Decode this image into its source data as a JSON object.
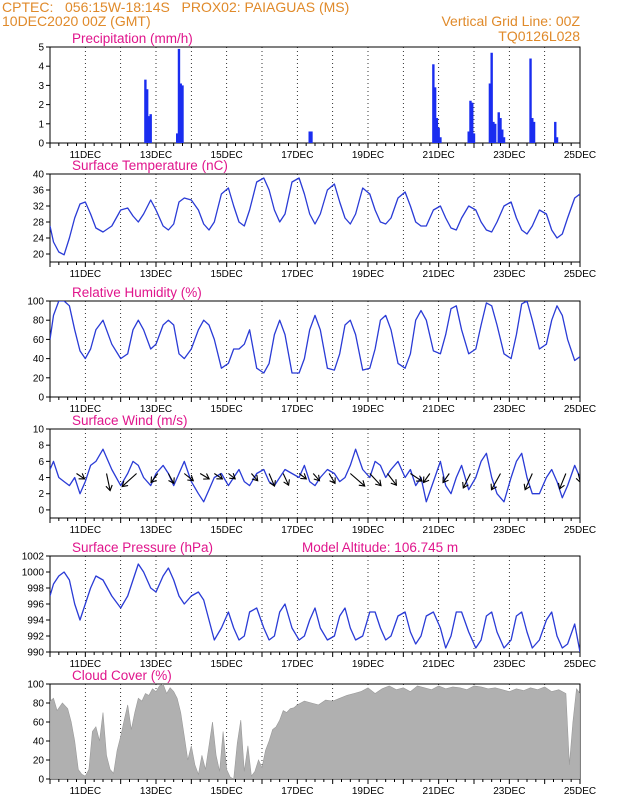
{
  "header": {
    "line1_left": "CPTEC:   056:15W-18:14S   PROX02: PAIAGUAS (MS)",
    "line2_left": "10DEC2020 00Z (GMT)",
    "line2_right": "Vertical Grid Line: 00Z",
    "line3_right": "TQ0126L028"
  },
  "colors": {
    "header": "#e08a2a",
    "title": "#e0158c",
    "line": "#2a3bd6",
    "bar": "#1a2df0",
    "cloud": "#b0b0b0",
    "arrow": "#000000"
  },
  "chart_data": [
    {
      "type": "bar",
      "title": "Precipitation (mm/h)",
      "ylim": [
        0,
        5
      ],
      "yticks": [
        0,
        1,
        2,
        3,
        4,
        5
      ],
      "xticks": [
        "11DEC",
        "13DEC",
        "15DEC",
        "17DEC",
        "19DEC",
        "21DEC",
        "23DEC",
        "25DEC"
      ],
      "xlim": [
        0,
        15
      ],
      "x": [
        2.7,
        2.75,
        2.8,
        2.85,
        3.6,
        3.65,
        3.7,
        3.75,
        7.35,
        7.4,
        10.85,
        10.9,
        10.95,
        11.0,
        11.05,
        11.85,
        11.9,
        11.95,
        12.0,
        12.45,
        12.5,
        12.55,
        12.6,
        12.7,
        12.75,
        12.8,
        12.85,
        13.6,
        13.65,
        13.7,
        14.3,
        14.35
      ],
      "values": [
        3.3,
        2.8,
        1.4,
        1.5,
        0.5,
        4.9,
        3.1,
        3.0,
        0.6,
        0.6,
        4.1,
        2.9,
        1.3,
        0.8,
        0.3,
        0.6,
        2.2,
        2.1,
        0.5,
        3.1,
        4.7,
        1.1,
        1.0,
        1.6,
        1.3,
        0.7,
        0.3,
        4.4,
        1.3,
        1.1,
        1.1,
        0.3
      ]
    },
    {
      "type": "line",
      "title": "Surface Temperature (nC)",
      "ylim": [
        18,
        40
      ],
      "yticks": [
        20,
        24,
        28,
        32,
        36,
        40
      ],
      "xticks": [
        "11DEC",
        "13DEC",
        "15DEC",
        "17DEC",
        "19DEC",
        "21DEC",
        "23DEC",
        "25DEC"
      ],
      "xlim": [
        0,
        15
      ],
      "x": [
        0,
        0.1,
        0.25,
        0.4,
        0.55,
        0.7,
        0.85,
        1.0,
        1.15,
        1.3,
        1.5,
        1.75,
        2.0,
        2.2,
        2.35,
        2.5,
        2.65,
        2.85,
        3.0,
        3.2,
        3.35,
        3.5,
        3.65,
        3.8,
        4.0,
        4.2,
        4.35,
        4.5,
        4.65,
        4.85,
        5.05,
        5.2,
        5.35,
        5.5,
        5.65,
        5.85,
        6.05,
        6.2,
        6.35,
        6.5,
        6.65,
        6.85,
        7.05,
        7.2,
        7.35,
        7.5,
        7.65,
        7.85,
        8.05,
        8.2,
        8.35,
        8.5,
        8.65,
        8.85,
        9.05,
        9.2,
        9.35,
        9.5,
        9.65,
        9.85,
        10.05,
        10.2,
        10.35,
        10.5,
        10.65,
        10.85,
        11.05,
        11.2,
        11.35,
        11.5,
        11.65,
        11.85,
        12.05,
        12.2,
        12.35,
        12.5,
        12.65,
        12.85,
        13.05,
        13.2,
        13.35,
        13.5,
        13.65,
        13.85,
        14.05,
        14.2,
        14.35,
        14.5,
        14.65,
        14.85,
        15.0
      ],
      "values": [
        27,
        23,
        20.5,
        19.8,
        24,
        29,
        32.5,
        33,
        30,
        26.5,
        25.5,
        27,
        31,
        31.5,
        29.5,
        28,
        30,
        33.5,
        31,
        27,
        26,
        27.5,
        33,
        34,
        33.5,
        31,
        27.5,
        26,
        28,
        35,
        36.5,
        32,
        28,
        27,
        31,
        38,
        39,
        36,
        31,
        28,
        30,
        38,
        39,
        35,
        30,
        27.5,
        30,
        36,
        37.5,
        33,
        29,
        27.5,
        30,
        36.5,
        35,
        31,
        28,
        27.5,
        29,
        34,
        35.5,
        32,
        28,
        27,
        27,
        31,
        32,
        29,
        26.5,
        26,
        29,
        32,
        31,
        28,
        26,
        25.5,
        28,
        32,
        33,
        29,
        26,
        25,
        27,
        31,
        30,
        26,
        24,
        25,
        29,
        34,
        35
      ]
    },
    {
      "type": "line",
      "title": "Relative Humidity (%)",
      "ylim": [
        0,
        100
      ],
      "yticks": [
        0,
        20,
        40,
        60,
        80,
        100
      ],
      "xticks": [
        "11DEC",
        "13DEC",
        "15DEC",
        "17DEC",
        "19DEC",
        "21DEC",
        "23DEC",
        "25DEC"
      ],
      "xlim": [
        0,
        15
      ],
      "x": [
        0,
        0.1,
        0.25,
        0.4,
        0.55,
        0.7,
        0.85,
        1.0,
        1.15,
        1.3,
        1.5,
        1.75,
        2.0,
        2.2,
        2.35,
        2.5,
        2.65,
        2.85,
        3.0,
        3.2,
        3.35,
        3.5,
        3.65,
        3.8,
        4.0,
        4.2,
        4.35,
        4.5,
        4.65,
        4.85,
        5.05,
        5.2,
        5.35,
        5.5,
        5.65,
        5.85,
        6.05,
        6.2,
        6.35,
        6.5,
        6.65,
        6.85,
        7.05,
        7.2,
        7.35,
        7.5,
        7.65,
        7.85,
        8.05,
        8.2,
        8.35,
        8.5,
        8.65,
        8.85,
        9.05,
        9.2,
        9.35,
        9.5,
        9.65,
        9.85,
        10.05,
        10.2,
        10.35,
        10.5,
        10.65,
        10.85,
        11.05,
        11.2,
        11.35,
        11.5,
        11.65,
        11.85,
        12.05,
        12.2,
        12.35,
        12.5,
        12.65,
        12.85,
        13.05,
        13.2,
        13.35,
        13.5,
        13.65,
        13.85,
        14.05,
        14.2,
        14.35,
        14.5,
        14.65,
        14.85,
        15.0
      ],
      "values": [
        60,
        85,
        100,
        100,
        95,
        70,
        48,
        40,
        50,
        70,
        80,
        55,
        40,
        45,
        70,
        80,
        70,
        50,
        55,
        75,
        80,
        75,
        45,
        40,
        50,
        70,
        80,
        75,
        60,
        30,
        35,
        50,
        50,
        55,
        70,
        30,
        25,
        35,
        65,
        80,
        65,
        25,
        25,
        40,
        70,
        85,
        70,
        30,
        28,
        45,
        75,
        80,
        65,
        28,
        30,
        50,
        80,
        85,
        70,
        35,
        30,
        45,
        80,
        90,
        80,
        48,
        45,
        65,
        92,
        95,
        70,
        45,
        50,
        75,
        98,
        95,
        75,
        45,
        40,
        65,
        97,
        100,
        80,
        50,
        55,
        80,
        95,
        85,
        60,
        38,
        42
      ]
    },
    {
      "type": "line",
      "title": "Surface Wind (m/s)",
      "ylim": [
        -1,
        10
      ],
      "yticks": [
        0,
        2,
        4,
        6,
        8,
        10
      ],
      "xticks": [
        "11DEC",
        "13DEC",
        "15DEC",
        "17DEC",
        "19DEC",
        "21DEC",
        "23DEC",
        "25DEC"
      ],
      "xlim": [
        0,
        15
      ],
      "x": [
        0,
        0.1,
        0.25,
        0.4,
        0.55,
        0.7,
        0.85,
        1.0,
        1.15,
        1.3,
        1.5,
        1.75,
        2.0,
        2.2,
        2.35,
        2.5,
        2.65,
        2.85,
        3.0,
        3.2,
        3.35,
        3.5,
        3.65,
        3.8,
        4.0,
        4.2,
        4.35,
        4.5,
        4.65,
        4.85,
        5.05,
        5.2,
        5.35,
        5.5,
        5.65,
        5.85,
        6.05,
        6.2,
        6.35,
        6.5,
        6.65,
        6.85,
        7.05,
        7.2,
        7.35,
        7.5,
        7.65,
        7.85,
        8.05,
        8.2,
        8.35,
        8.5,
        8.65,
        8.85,
        9.05,
        9.2,
        9.35,
        9.5,
        9.65,
        9.85,
        10.05,
        10.2,
        10.35,
        10.5,
        10.65,
        10.85,
        11.05,
        11.2,
        11.35,
        11.5,
        11.65,
        11.85,
        12.05,
        12.2,
        12.35,
        12.5,
        12.65,
        12.85,
        13.05,
        13.2,
        13.35,
        13.5,
        13.65,
        13.85,
        14.05,
        14.2,
        14.35,
        14.5,
        14.65,
        14.85,
        15.0
      ],
      "values": [
        5,
        6,
        4,
        3.5,
        3,
        4,
        2,
        3.5,
        5.5,
        6,
        7.5,
        5,
        3,
        4.5,
        6,
        5.5,
        4,
        3,
        4.5,
        5.5,
        4.5,
        3,
        4.5,
        6,
        3.5,
        2,
        1,
        2.5,
        4,
        4.5,
        3,
        4,
        5,
        3.5,
        3,
        4.5,
        5,
        3.5,
        3,
        4,
        5,
        4.5,
        4,
        5.5,
        3.5,
        3,
        4,
        5,
        4.5,
        3.5,
        4,
        5.5,
        7.5,
        5,
        4,
        6,
        5.5,
        4,
        5,
        6,
        4,
        5,
        3,
        4,
        1,
        3.5,
        6,
        3,
        2,
        4,
        5.5,
        2.5,
        4,
        6,
        7,
        4,
        2,
        1,
        4,
        6,
        7,
        4,
        2,
        2,
        4,
        5,
        3.5,
        1.5,
        3,
        5.5,
        4
      ],
      "vectors": {
        "x": [
          0.75,
          1.6,
          2.45,
          3.05,
          3.35,
          3.8,
          4.25,
          4.65,
          5.05,
          5.7,
          6.2,
          6.6,
          7.05,
          7.45,
          7.9,
          8.5,
          9.05,
          9.55,
          10.2,
          10.75,
          11.3,
          11.9,
          12.75,
          13.65,
          14.6,
          14.95
        ],
        "u": [
          1.8,
          0.8,
          -3.2,
          -1.5,
          1.2,
          2,
          2,
          1.8,
          1.5,
          1.4,
          1.2,
          1.2,
          1.6,
          1.4,
          1.3,
          3.2,
          2.5,
          2,
          2.6,
          -1.4,
          -1.4,
          -1.6,
          -2,
          -1.6,
          -1.4,
          0.5
        ],
        "v": [
          -1.2,
          -3.8,
          -2.9,
          -2,
          -2.2,
          -1.6,
          -1.2,
          -1.2,
          -1.2,
          -1.6,
          -2.8,
          -2.6,
          -1.2,
          -1.6,
          -2.2,
          -2.8,
          -2.7,
          -2.6,
          -1.7,
          -2,
          -2,
          -3.2,
          -3.6,
          -3.6,
          -3.4,
          -2
        ]
      }
    },
    {
      "type": "line",
      "title": "Surface Pressure (hPa)",
      "annotation": "Model Altitude: 106.745  m",
      "ylim": [
        990,
        1002
      ],
      "yticks": [
        990,
        992,
        994,
        996,
        998,
        1000,
        1002
      ],
      "xticks": [
        "11DEC",
        "13DEC",
        "15DEC",
        "17DEC",
        "19DEC",
        "21DEC",
        "23DEC",
        "25DEC"
      ],
      "xlim": [
        0,
        15
      ],
      "x": [
        0,
        0.1,
        0.25,
        0.4,
        0.55,
        0.7,
        0.85,
        1.0,
        1.15,
        1.3,
        1.5,
        1.75,
        2.0,
        2.2,
        2.35,
        2.5,
        2.65,
        2.85,
        3.0,
        3.2,
        3.35,
        3.5,
        3.65,
        3.8,
        4.0,
        4.2,
        4.35,
        4.5,
        4.65,
        4.85,
        5.05,
        5.2,
        5.35,
        5.5,
        5.65,
        5.85,
        6.05,
        6.2,
        6.35,
        6.5,
        6.65,
        6.85,
        7.05,
        7.2,
        7.35,
        7.5,
        7.65,
        7.85,
        8.05,
        8.2,
        8.35,
        8.5,
        8.65,
        8.85,
        9.05,
        9.2,
        9.35,
        9.5,
        9.65,
        9.85,
        10.05,
        10.2,
        10.35,
        10.5,
        10.65,
        10.85,
        11.05,
        11.2,
        11.35,
        11.5,
        11.65,
        11.85,
        12.05,
        12.2,
        12.35,
        12.5,
        12.65,
        12.85,
        13.05,
        13.2,
        13.35,
        13.5,
        13.65,
        13.85,
        14.05,
        14.2,
        14.35,
        14.5,
        14.65,
        14.85,
        15.0
      ],
      "values": [
        997,
        998.5,
        999.5,
        1000,
        999,
        996,
        994,
        996,
        998,
        999.5,
        999,
        997,
        995.5,
        997,
        999,
        1001,
        1000,
        998,
        997.5,
        999.5,
        1000.5,
        999,
        997,
        996,
        997,
        997.5,
        996.5,
        994,
        991.5,
        993,
        995,
        993,
        991.5,
        992,
        995,
        995.5,
        993,
        991.5,
        992,
        995,
        996,
        993,
        991.5,
        992,
        994,
        995.5,
        993,
        991.5,
        992,
        994.5,
        995.5,
        993,
        991.5,
        992,
        995,
        995,
        993,
        991.5,
        992,
        994.5,
        995,
        992.5,
        991,
        992,
        994.5,
        995,
        993,
        990.5,
        992,
        995,
        995,
        992.5,
        990.5,
        991.5,
        994.5,
        995,
        992.5,
        990.5,
        991.5,
        994.5,
        995,
        992.5,
        990.5,
        991.5,
        994,
        995,
        992,
        990.5,
        991,
        993.5,
        990
      ]
    },
    {
      "type": "area",
      "title": "Cloud Cover (%)",
      "ylim": [
        0,
        100
      ],
      "yticks": [
        0,
        20,
        40,
        60,
        80,
        100
      ],
      "xticks": [
        "11DEC",
        "13DEC",
        "15DEC",
        "17DEC",
        "19DEC",
        "21DEC",
        "23DEC",
        "25DEC"
      ],
      "xlim": [
        0,
        15
      ],
      "x": [
        0,
        0.1,
        0.2,
        0.35,
        0.5,
        0.6,
        0.7,
        0.8,
        0.9,
        1.0,
        1.1,
        1.2,
        1.3,
        1.4,
        1.5,
        1.6,
        1.7,
        1.8,
        1.9,
        2.0,
        2.1,
        2.2,
        2.3,
        2.4,
        2.5,
        2.6,
        2.7,
        2.8,
        2.9,
        3.0,
        3.1,
        3.2,
        3.3,
        3.4,
        3.5,
        3.6,
        3.7,
        3.8,
        3.9,
        4.0,
        4.1,
        4.2,
        4.3,
        4.4,
        4.5,
        4.6,
        4.7,
        4.8,
        4.9,
        5.0,
        5.1,
        5.2,
        5.3,
        5.4,
        5.5,
        5.6,
        5.7,
        5.8,
        5.9,
        6.0,
        6.1,
        6.2,
        6.3,
        6.4,
        6.5,
        6.6,
        6.7,
        6.8,
        6.9,
        7.0,
        7.2,
        7.4,
        7.6,
        7.8,
        8.0,
        8.2,
        8.4,
        8.6,
        8.8,
        9.0,
        9.2,
        9.4,
        9.6,
        9.8,
        10.0,
        10.2,
        10.4,
        10.6,
        10.8,
        11.0,
        11.2,
        11.4,
        11.6,
        11.8,
        12.0,
        12.2,
        12.4,
        12.6,
        12.8,
        13.0,
        13.2,
        13.4,
        13.6,
        13.8,
        14.0,
        14.2,
        14.4,
        14.6,
        14.7,
        14.8,
        14.9,
        15.0
      ],
      "values": [
        82,
        85,
        72,
        80,
        74,
        60,
        40,
        10,
        5,
        3,
        10,
        50,
        55,
        40,
        70,
        25,
        10,
        6,
        30,
        45,
        62,
        78,
        52,
        70,
        85,
        82,
        90,
        88,
        95,
        92,
        98,
        100,
        90,
        96,
        92,
        85,
        70,
        45,
        20,
        35,
        15,
        5,
        25,
        10,
        35,
        60,
        25,
        8,
        50,
        10,
        2,
        0,
        38,
        62,
        8,
        35,
        3,
        8,
        20,
        12,
        30,
        40,
        52,
        55,
        62,
        72,
        70,
        74,
        75,
        78,
        82,
        80,
        78,
        83,
        82,
        85,
        88,
        90,
        92,
        96,
        90,
        95,
        98,
        94,
        96,
        92,
        98,
        96,
        94,
        98,
        95,
        97,
        96,
        94,
        98,
        97,
        95,
        96,
        94,
        92,
        95,
        93,
        96,
        94,
        97,
        92,
        94,
        90,
        15,
        60,
        95,
        90
      ]
    }
  ]
}
